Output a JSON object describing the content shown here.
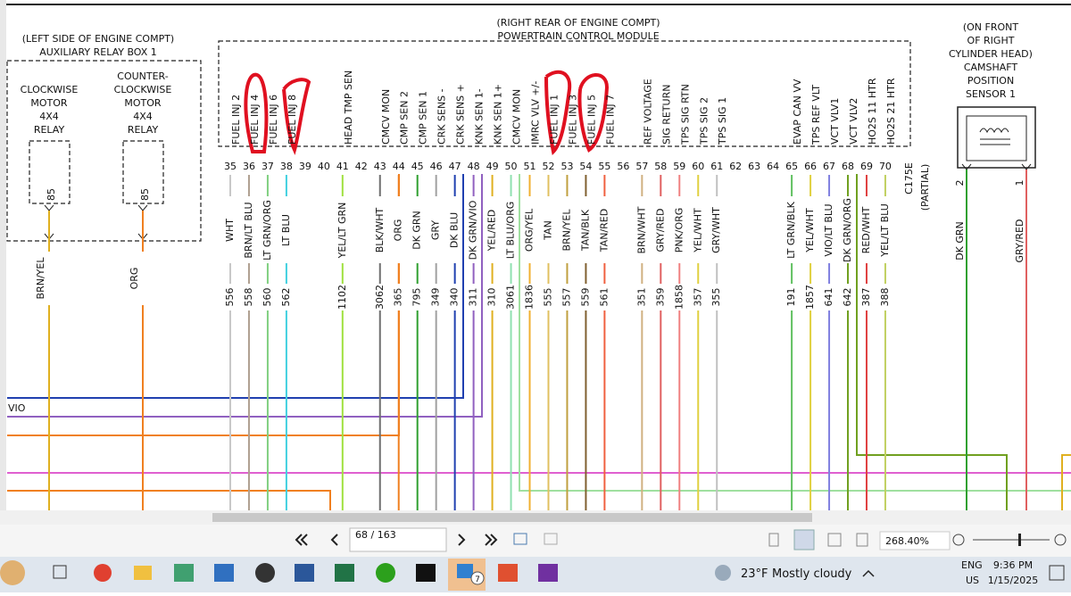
{
  "left_box": {
    "title": [
      "(LEFT SIDE OF ENGINE COMPT)",
      "AUXILIARY RELAY BOX 1"
    ],
    "relays": [
      {
        "label": [
          "CLOCKWISE",
          "MOTOR",
          "4X4",
          "RELAY"
        ],
        "pin": "85",
        "wire": "BRN/YEL",
        "stroke": "#e0b020"
      },
      {
        "label": [
          "COUNTER-",
          "CLOCKWISE",
          "MOTOR",
          "4X4",
          "RELAY"
        ],
        "pin": "85",
        "wire": "ORG",
        "stroke": "#f08020"
      }
    ]
  },
  "pcm": {
    "title": [
      "(RIGHT REAR OF ENGINE COMPT)",
      "POWERTRAIN CONTROL MODULE"
    ],
    "pins": [
      {
        "pin": "35",
        "name": "FUEL INJ 2",
        "wire": "WHT",
        "circuit": "556",
        "stroke": "#c8c8c8"
      },
      {
        "pin": "36",
        "name": "FUEL INJ 4",
        "wire": "BRN/LT BLU",
        "circuit": "558",
        "stroke": "#b0a090"
      },
      {
        "pin": "37",
        "name": "FUEL INJ 6",
        "wire": "LT GRN/ORG",
        "circuit": "560",
        "stroke": "#80d080"
      },
      {
        "pin": "38",
        "name": "FUEL INJ 8",
        "wire": "LT BLU",
        "circuit": "562",
        "stroke": "#40d0e0"
      },
      {
        "pin": "39"
      },
      {
        "pin": "40"
      },
      {
        "pin": "41",
        "name": "HEAD TMP SEN",
        "wire": "YEL/LT GRN",
        "circuit": "1102",
        "stroke": "#a0e040"
      },
      {
        "pin": "42"
      },
      {
        "pin": "43",
        "name": "CMCV MON",
        "wire": "BLK/WHT",
        "circuit": "3062",
        "stroke": "#707070"
      },
      {
        "pin": "44",
        "name": "CMP SEN 2",
        "wire": "ORG",
        "circuit": "365",
        "stroke": "#f08020"
      },
      {
        "pin": "45",
        "name": "CMP SEN 1",
        "wire": "DK GRN",
        "circuit": "795",
        "stroke": "#30a030"
      },
      {
        "pin": "46",
        "name": "CRK SENS -",
        "wire": "GRY",
        "circuit": "349",
        "stroke": "#a0a0a0"
      },
      {
        "pin": "47",
        "name": "CRK SENS +",
        "wire": "DK BLU",
        "circuit": "340",
        "stroke": "#2040b0"
      },
      {
        "pin": "48",
        "name": "KNK SEN 1-",
        "wire": "DK GRN/VIO",
        "circuit": "311",
        "stroke": "#9060c0"
      },
      {
        "pin": "49",
        "name": "KNK SEN 1+",
        "wire": "YEL/RED",
        "circuit": "310",
        "stroke": "#e0b020"
      },
      {
        "pin": "50",
        "name": "CMCV MON",
        "wire": "LT BLU/ORG",
        "circuit": "3061",
        "stroke": "#90e0b0"
      },
      {
        "pin": "51",
        "name": "IMRC VLV +/-",
        "wire": "ORG/YEL",
        "circuit": "1836",
        "stroke": "#f0b030"
      },
      {
        "pin": "52",
        "name": "FUEL INJ 1",
        "wire": "TAN",
        "circuit": "555",
        "stroke": "#e0c060"
      },
      {
        "pin": "53",
        "name": "FUEL INJ 3",
        "wire": "BRN/YEL",
        "circuit": "557",
        "stroke": "#c0a040"
      },
      {
        "pin": "54",
        "name": "FUEL INJ 5",
        "wire": "TAN/BLK",
        "circuit": "559",
        "stroke": "#806030"
      },
      {
        "pin": "55",
        "name": "FUEL INJ 7",
        "wire": "TAN/RED",
        "circuit": "561",
        "stroke": "#f06040"
      },
      {
        "pin": "56"
      },
      {
        "pin": "57",
        "name": "REF VOLTAGE",
        "wire": "BRN/WHT",
        "circuit": "351",
        "stroke": "#d0b080"
      },
      {
        "pin": "58",
        "name": "SIG RETURN",
        "wire": "GRY/RED",
        "circuit": "359",
        "stroke": "#e06060"
      },
      {
        "pin": "59",
        "name": "TPS SIG RTN",
        "wire": "PNK/ORG",
        "circuit": "1858",
        "stroke": "#f08080"
      },
      {
        "pin": "60",
        "name": "TPS SIG 2",
        "wire": "YEL/WHT",
        "circuit": "357",
        "stroke": "#e0d040"
      },
      {
        "pin": "61",
        "name": "TPS SIG 1",
        "wire": "GRY/WHT",
        "circuit": "355",
        "stroke": "#c0c0c0"
      },
      {
        "pin": "62"
      },
      {
        "pin": "63"
      },
      {
        "pin": "64"
      },
      {
        "pin": "65",
        "name": "EVAP CAN VV",
        "wire": "LT GRN/BLK",
        "circuit": "191",
        "stroke": "#60c060"
      },
      {
        "pin": "66",
        "name": "TPS REF VLT",
        "wire": "YEL/WHT",
        "circuit": "1857",
        "stroke": "#e0d040"
      },
      {
        "pin": "67",
        "name": "VCT VLV1",
        "wire": "VIO/LT BLU",
        "circuit": "641",
        "stroke": "#8080e0"
      },
      {
        "pin": "68",
        "name": "VCT VLV2",
        "wire": "DK GRN/ORG",
        "circuit": "642",
        "stroke": "#70a020"
      },
      {
        "pin": "69",
        "name": "HO2S 11 HTR",
        "wire": "RED/WHT",
        "circuit": "387",
        "stroke": "#e04040"
      },
      {
        "pin": "70",
        "name": "HO2S 21 HTR",
        "wire": "YEL/LT BLU",
        "circuit": "388",
        "stroke": "#c0d060"
      }
    ]
  },
  "connector": {
    "name": "C175E",
    "note": "(PARTIAL)"
  },
  "sensor": {
    "title": [
      "(ON FRONT",
      "OF RIGHT",
      "CYLINDER HEAD)",
      "CAMSHAFT",
      "POSITION",
      "SENSOR 1"
    ],
    "pins": [
      {
        "pin": "2",
        "wire": "DK GRN",
        "stroke": "#30a030"
      },
      {
        "pin": "1",
        "wire": "GRY/RED",
        "stroke": "#e06060"
      }
    ]
  },
  "offpage_label": "VIO",
  "toolbar": {
    "page": "68 / 163",
    "zoom": "268.40%"
  },
  "taskbar": {
    "badge": "7",
    "temperature": "23°F",
    "weather": "Mostly cloudy",
    "language": [
      "ENG",
      "US"
    ],
    "time": "9:36 PM",
    "date": "1/15/2025"
  }
}
